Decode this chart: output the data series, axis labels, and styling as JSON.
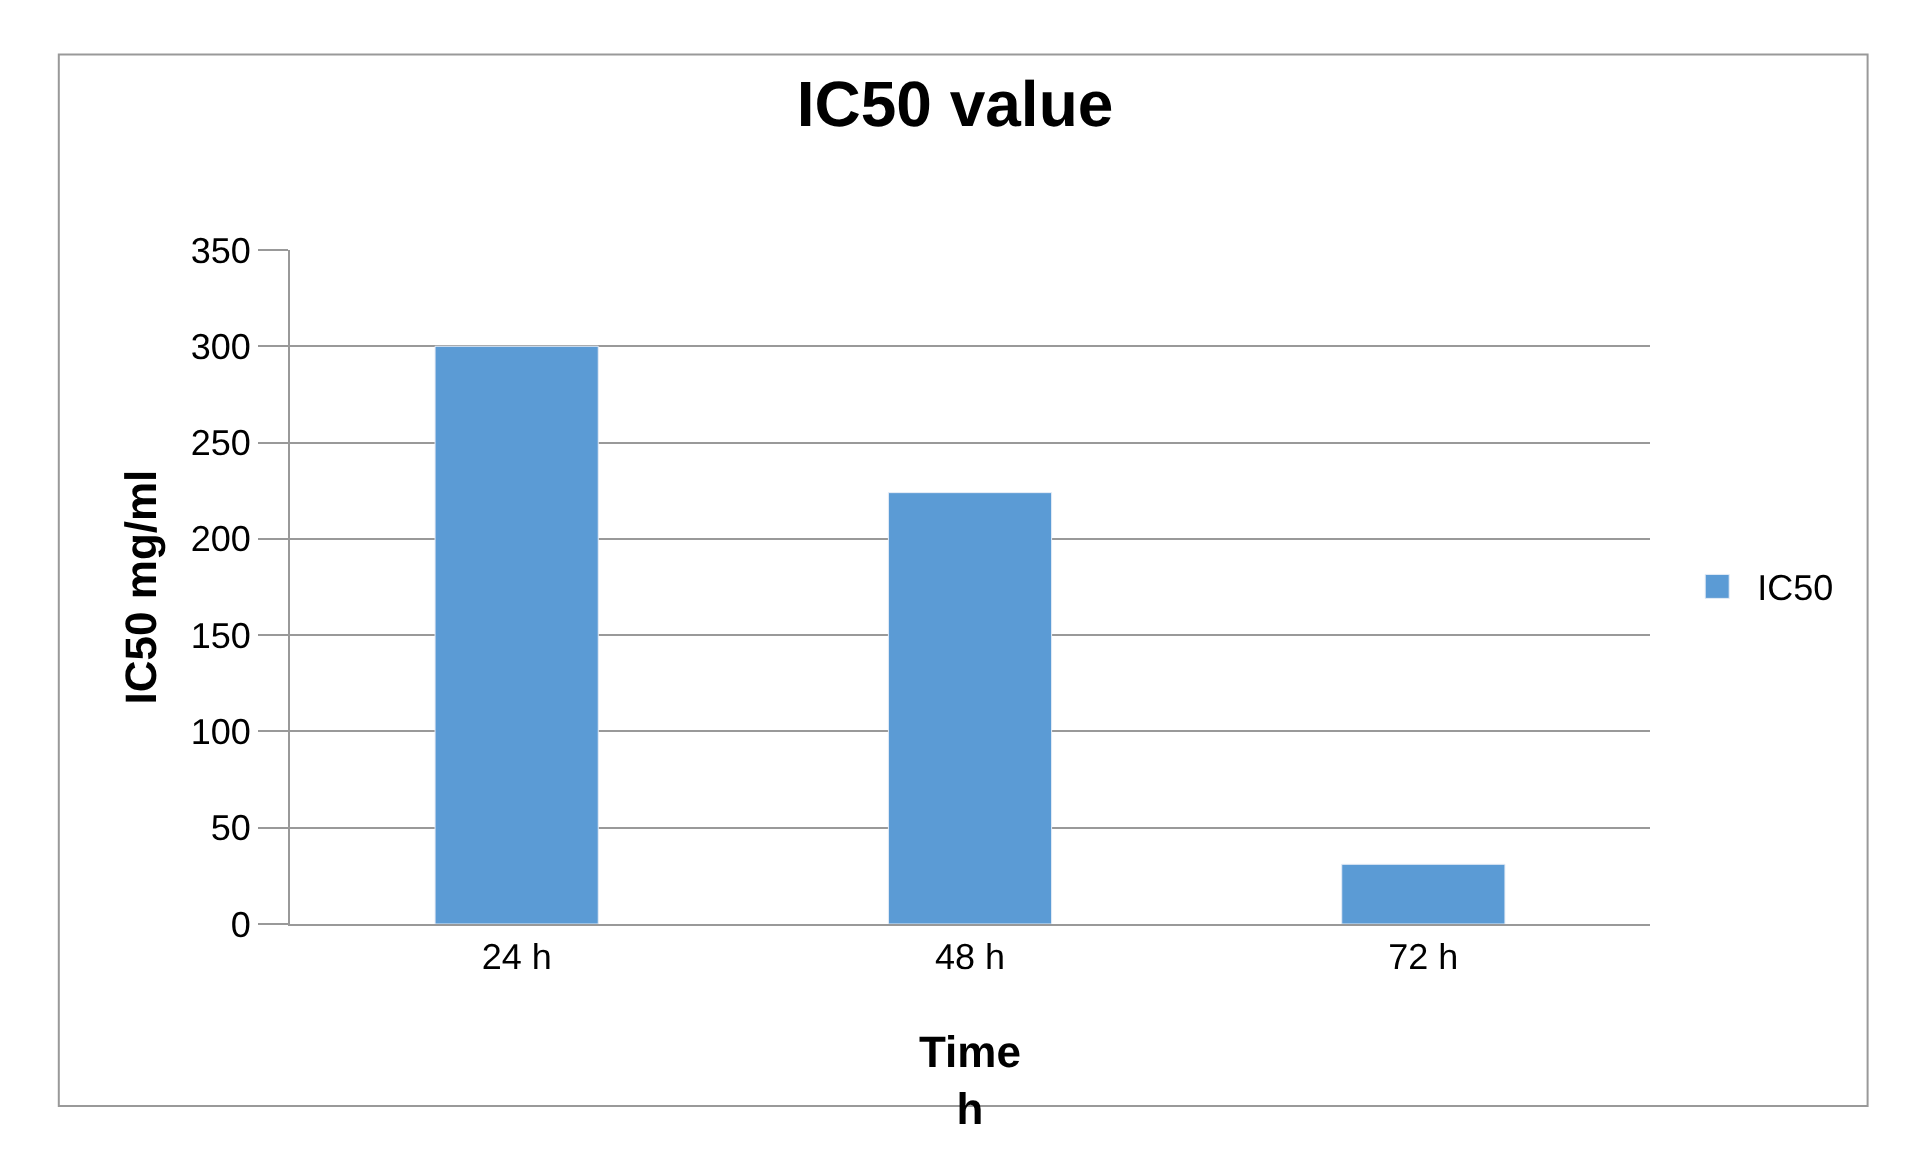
{
  "chart_data": {
    "type": "bar",
    "title": "IC50 value",
    "xlabel": "Time\nh",
    "ylabel": "IC50 mg/ml",
    "categories": [
      "24 h",
      "48 h",
      "72 h"
    ],
    "series": [
      {
        "name": "IC50",
        "color": "#5b9bd5",
        "values": [
          300,
          224,
          31
        ]
      }
    ],
    "ylim": [
      0,
      350
    ],
    "yticks": [
      0,
      50,
      100,
      150,
      200,
      250,
      300,
      350
    ],
    "grid": "y",
    "legend": "right"
  }
}
